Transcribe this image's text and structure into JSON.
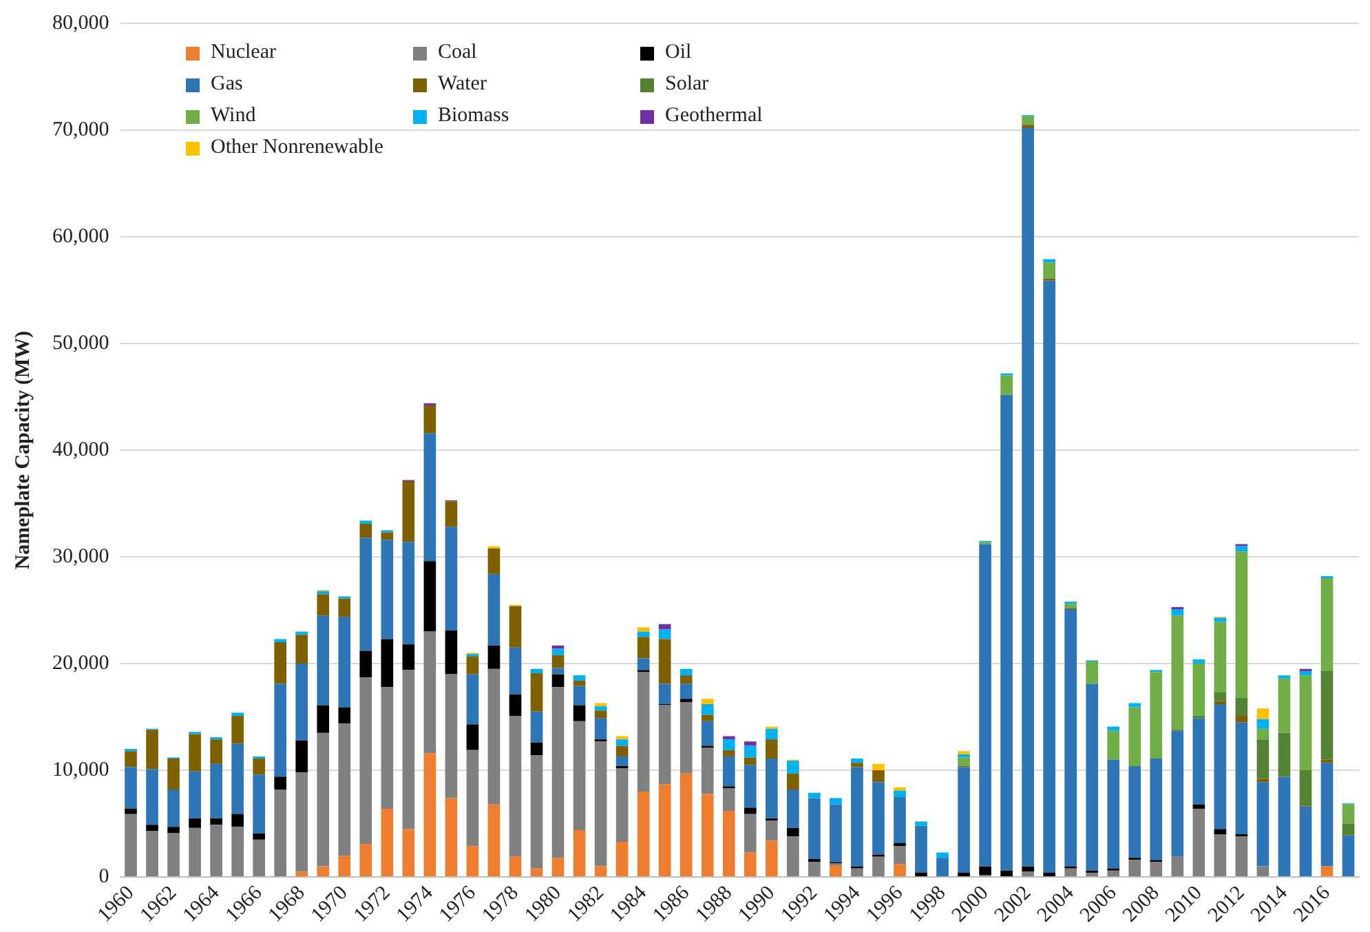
{
  "chart_data": {
    "type": "bar",
    "stacked": true,
    "ylabel": "Nameplate Capacity (MW)",
    "categories": [
      "1960",
      null,
      "1962",
      null,
      "1964",
      null,
      "1966",
      null,
      "1968",
      null,
      "1970",
      null,
      "1972",
      null,
      "1974",
      null,
      "1976",
      null,
      "1978",
      null,
      "1980",
      null,
      "1982",
      null,
      "1984",
      null,
      "1986",
      null,
      "1988",
      null,
      "1990",
      null,
      "1992",
      null,
      "1994",
      null,
      "1996",
      null,
      "1998",
      null,
      "2000",
      null,
      "2002",
      null,
      "2004",
      null,
      "2006",
      null,
      "2008",
      null,
      "2010",
      null,
      "2012",
      null,
      "2014",
      null,
      "2016",
      null
    ],
    "ylim": [
      0,
      80000
    ],
    "yticks": [
      {
        "value": 0,
        "label": "0"
      },
      {
        "value": 10000,
        "label": "10,000"
      },
      {
        "value": 20000,
        "label": "20,000"
      },
      {
        "value": 30000,
        "label": "30,000"
      },
      {
        "value": 40000,
        "label": "40,000"
      },
      {
        "value": 50000,
        "label": "50,000"
      },
      {
        "value": 60000,
        "label": "60,000"
      },
      {
        "value": 70000,
        "label": "70,000"
      },
      {
        "value": 80000,
        "label": "80,000"
      }
    ],
    "grid": "y",
    "legend": "top left",
    "series": [
      {
        "name": "Nuclear",
        "color": "#ed7d31",
        "values": [
          0,
          0,
          0,
          0,
          0,
          0,
          0,
          0,
          500,
          1000,
          2000,
          3100,
          6400,
          4500,
          11600,
          7400,
          2900,
          6800,
          1900,
          800,
          1800,
          4400,
          1000,
          3300,
          8000,
          8700,
          9700,
          7800,
          6200,
          2300,
          3400,
          0,
          0,
          1100,
          0,
          0,
          1200,
          0,
          0,
          0,
          0,
          0,
          0,
          0,
          0,
          0,
          0,
          0,
          0,
          0,
          0,
          0,
          0,
          0,
          0,
          0,
          1000,
          0
        ]
      },
      {
        "name": "Coal",
        "color": "#808080",
        "values": [
          5900,
          4300,
          4100,
          4600,
          4900,
          4700,
          3500,
          8200,
          9300,
          12500,
          12400,
          15600,
          11400,
          14900,
          11400,
          11600,
          9000,
          12700,
          13200,
          10600,
          16000,
          10200,
          11700,
          6900,
          11200,
          7400,
          6700,
          4300,
          2100,
          3600,
          1900,
          3800,
          1400,
          200,
          800,
          1900,
          1700,
          0,
          0,
          0,
          200,
          0,
          500,
          0,
          800,
          400,
          600,
          1600,
          1400,
          1900,
          6400,
          4000,
          3800,
          1000,
          0,
          0,
          0,
          0
        ]
      },
      {
        "name": "Oil",
        "color": "#000000",
        "values": [
          500,
          600,
          600,
          900,
          600,
          1200,
          600,
          1200,
          3000,
          2600,
          1500,
          2500,
          4500,
          2400,
          6600,
          4100,
          2400,
          2200,
          2000,
          1200,
          1200,
          1500,
          200,
          200,
          200,
          100,
          300,
          200,
          200,
          600,
          200,
          800,
          300,
          100,
          200,
          200,
          300,
          400,
          null,
          400,
          800,
          600,
          500,
          400,
          200,
          200,
          200,
          200,
          200,
          0,
          400,
          500,
          200,
          0,
          0,
          0,
          0,
          0
        ]
      },
      {
        "name": "Gas",
        "color": "#2e75b6",
        "values": [
          3900,
          5200,
          3500,
          4400,
          5100,
          6600,
          5500,
          8700,
          7200,
          8400,
          8500,
          10600,
          9300,
          9600,
          12000,
          9700,
          4700,
          6700,
          4400,
          2900,
          600,
          1800,
          2000,
          900,
          1100,
          1900,
          1400,
          2300,
          2800,
          4000,
          5600,
          3600,
          5700,
          5400,
          9300,
          6800,
          4300,
          4400,
          1800,
          9900,
          30200,
          44600,
          69200,
          55500,
          24100,
          17500,
          10200,
          8600,
          9500,
          11800,
          8100,
          11700,
          10500,
          7900,
          9400,
          6600,
          9700,
          3900
        ]
      },
      {
        "name": "Water",
        "color": "#7f6000",
        "values": [
          1500,
          3700,
          2900,
          3500,
          2300,
          2600,
          1500,
          3900,
          2700,
          2000,
          1700,
          1300,
          700,
          5700,
          2600,
          2400,
          1700,
          2400,
          3900,
          3600,
          1200,
          500,
          700,
          1000,
          2000,
          4200,
          800,
          600,
          600,
          700,
          1800,
          1500,
          0,
          0,
          400,
          1100,
          0,
          0,
          0,
          100,
          0,
          0,
          300,
          200,
          100,
          0,
          0,
          0,
          0,
          100,
          0,
          300,
          600,
          300,
          0,
          100,
          300,
          0
        ]
      },
      {
        "name": "Solar",
        "color": "#548235",
        "values": [
          0,
          0,
          0,
          0,
          0,
          0,
          0,
          0,
          0,
          0,
          0,
          0,
          0,
          0,
          0,
          0,
          0,
          0,
          0,
          0,
          0,
          0,
          0,
          0,
          0,
          0,
          0,
          0,
          0,
          0,
          0,
          0,
          0,
          0,
          0,
          0,
          0,
          0,
          0,
          0,
          0,
          0,
          0,
          0,
          0,
          0,
          0,
          0,
          0,
          0,
          200,
          800,
          1700,
          3700,
          4100,
          3300,
          8300,
          1100
        ]
      },
      {
        "name": "Wind",
        "color": "#70ad47",
        "values": [
          0,
          0,
          0,
          0,
          0,
          0,
          0,
          0,
          0,
          0,
          0,
          0,
          0,
          0,
          0,
          0,
          0,
          0,
          0,
          0,
          0,
          0,
          0,
          0,
          0,
          0,
          0,
          0,
          0,
          0,
          0,
          0,
          0,
          0,
          0,
          0,
          0,
          0,
          0,
          800,
          200,
          1800,
          800,
          1500,
          400,
          2100,
          2700,
          5500,
          8100,
          10700,
          4900,
          6600,
          13700,
          1000,
          5100,
          8900,
          8700,
          1800
        ]
      },
      {
        "name": "Biomass",
        "color": "#00b0f0",
        "values": [
          200,
          100,
          100,
          200,
          200,
          300,
          200,
          300,
          300,
          300,
          200,
          300,
          200,
          0,
          0,
          0,
          200,
          0,
          0,
          400,
          600,
          500,
          400,
          600,
          500,
          900,
          600,
          1000,
          1000,
          1100,
          1000,
          1200,
          500,
          600,
          400,
          0,
          600,
          400,
          500,
          300,
          100,
          200,
          100,
          300,
          200,
          100,
          400,
          400,
          200,
          600,
          400,
          400,
          500,
          900,
          300,
          400,
          200,
          100
        ]
      },
      {
        "name": "Geothermal",
        "color": "#7030a0",
        "values": [
          0,
          0,
          0,
          0,
          0,
          0,
          0,
          0,
          0,
          0,
          0,
          0,
          0,
          100,
          200,
          100,
          0,
          0,
          0,
          0,
          300,
          0,
          0,
          0,
          0,
          500,
          0,
          0,
          300,
          400,
          0,
          0,
          0,
          0,
          0,
          0,
          0,
          0,
          0,
          0,
          0,
          0,
          0,
          0,
          0,
          0,
          0,
          0,
          0,
          200,
          0,
          0,
          200,
          0,
          0,
          200,
          0,
          0
        ]
      },
      {
        "name": "Other Nonrenewable",
        "color": "#ffc000",
        "values": [
          0,
          0,
          0,
          0,
          0,
          0,
          0,
          0,
          0,
          100,
          0,
          0,
          0,
          0,
          0,
          0,
          100,
          200,
          100,
          0,
          0,
          0,
          300,
          300,
          400,
          0,
          0,
          500,
          0,
          0,
          200,
          100,
          0,
          0,
          0,
          600,
          300,
          0,
          0,
          300,
          0,
          0,
          0,
          0,
          0,
          0,
          0,
          0,
          0,
          0,
          0,
          100,
          0,
          1000,
          0,
          0,
          0,
          0
        ]
      }
    ]
  }
}
